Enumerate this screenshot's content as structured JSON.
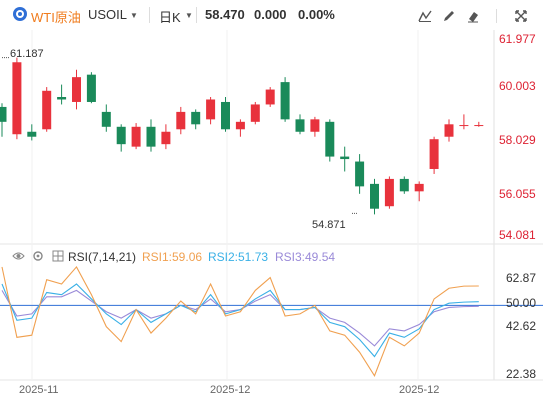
{
  "toolbar": {
    "symbol_name": "WTI原油",
    "symbol_code": "USOIL",
    "period": "日K",
    "last": "58.470",
    "change": "0.000",
    "change_pct": "0.00%",
    "icons": [
      "line-tool-icon",
      "pen-icon",
      "eraser-icon",
      "fullscreen-icon"
    ]
  },
  "price_axis": [
    "61.977",
    "60.003",
    "58.029",
    "56.055",
    "54.081"
  ],
  "annotations": {
    "high": "61.187",
    "low": "54.871"
  },
  "rsi": {
    "title": "RSI(7,14,21)",
    "rsi1": "RSI1:59.06",
    "rsi2": "RSI2:51.73",
    "rsi3": "RSI3:49.54",
    "axis": [
      "62.87",
      "50.00",
      "42.62",
      "22.38"
    ]
  },
  "dates": [
    "2025-11",
    "2025-12",
    "2025-12"
  ],
  "colors": {
    "up": "#e8323c",
    "down": "#1a8a5a",
    "rsi1": "#f0a050",
    "rsi2": "#3ab0e6",
    "rsi3": "#9a8ad8",
    "midline": "#2f6fd6"
  },
  "chart_data": {
    "type": "candlestick",
    "ylim": [
      54.081,
      61.977
    ],
    "candles": [
      {
        "o": 59.2,
        "h": 59.35,
        "l": 58.0,
        "c": 58.6
      },
      {
        "o": 58.1,
        "h": 61.187,
        "l": 57.9,
        "c": 61.0
      },
      {
        "o": 58.2,
        "h": 58.5,
        "l": 57.85,
        "c": 58.0
      },
      {
        "o": 58.3,
        "h": 60.0,
        "l": 58.2,
        "c": 59.85
      },
      {
        "o": 59.6,
        "h": 60.1,
        "l": 59.3,
        "c": 59.5
      },
      {
        "o": 59.4,
        "h": 60.7,
        "l": 59.1,
        "c": 60.4
      },
      {
        "o": 60.5,
        "h": 60.6,
        "l": 59.35,
        "c": 59.4
      },
      {
        "o": 59.0,
        "h": 59.3,
        "l": 58.2,
        "c": 58.4
      },
      {
        "o": 58.4,
        "h": 58.5,
        "l": 57.4,
        "c": 57.7
      },
      {
        "o": 57.6,
        "h": 58.55,
        "l": 57.5,
        "c": 58.4
      },
      {
        "o": 58.4,
        "h": 58.7,
        "l": 57.4,
        "c": 57.6
      },
      {
        "o": 57.7,
        "h": 58.5,
        "l": 57.5,
        "c": 58.2
      },
      {
        "o": 58.3,
        "h": 59.2,
        "l": 58.1,
        "c": 59.0
      },
      {
        "o": 59.0,
        "h": 59.1,
        "l": 58.3,
        "c": 58.5
      },
      {
        "o": 58.7,
        "h": 59.6,
        "l": 58.5,
        "c": 59.5
      },
      {
        "o": 59.4,
        "h": 59.6,
        "l": 58.2,
        "c": 58.3
      },
      {
        "o": 58.3,
        "h": 58.7,
        "l": 58.0,
        "c": 58.6
      },
      {
        "o": 58.6,
        "h": 59.4,
        "l": 58.5,
        "c": 59.3
      },
      {
        "o": 59.3,
        "h": 60.0,
        "l": 59.2,
        "c": 59.9
      },
      {
        "o": 60.2,
        "h": 60.4,
        "l": 58.6,
        "c": 58.7
      },
      {
        "o": 58.7,
        "h": 58.9,
        "l": 58.1,
        "c": 58.2
      },
      {
        "o": 58.2,
        "h": 58.8,
        "l": 58.0,
        "c": 58.7
      },
      {
        "o": 58.6,
        "h": 58.7,
        "l": 57.0,
        "c": 57.2
      },
      {
        "o": 57.2,
        "h": 57.6,
        "l": 56.6,
        "c": 57.1
      },
      {
        "o": 57.0,
        "h": 57.3,
        "l": 55.7,
        "c": 56.0
      },
      {
        "o": 56.1,
        "h": 56.3,
        "l": 54.871,
        "c": 55.1
      },
      {
        "o": 55.2,
        "h": 56.4,
        "l": 55.1,
        "c": 56.3
      },
      {
        "o": 56.3,
        "h": 56.4,
        "l": 55.7,
        "c": 55.8
      },
      {
        "o": 55.8,
        "h": 56.2,
        "l": 55.4,
        "c": 56.1
      },
      {
        "o": 56.7,
        "h": 58.0,
        "l": 56.5,
        "c": 57.9
      },
      {
        "o": 58.0,
        "h": 58.7,
        "l": 57.8,
        "c": 58.5
      },
      {
        "o": 58.47,
        "h": 58.9,
        "l": 58.3,
        "c": 58.47
      },
      {
        "o": 58.47,
        "h": 58.6,
        "l": 58.4,
        "c": 58.47
      }
    ],
    "rsi_ylim": [
      15,
      75
    ],
    "rsi1": [
      68,
      35,
      36,
      62,
      60,
      68,
      55,
      40,
      33,
      48,
      37,
      44,
      52,
      46,
      60,
      45,
      47,
      57,
      63,
      45,
      46,
      50,
      38,
      36,
      28,
      17,
      35,
      31,
      37,
      53,
      58,
      59,
      59.06
    ],
    "rsi2": [
      60,
      43,
      44,
      56,
      55,
      60,
      53,
      46,
      41,
      48,
      42,
      46,
      50,
      47,
      55,
      46,
      48,
      53,
      57,
      48,
      48,
      49,
      42,
      40,
      34,
      26,
      37,
      35,
      39,
      48,
      51,
      51.5,
      51.73
    ],
    "rsi3": [
      57,
      45,
      46,
      54,
      54,
      57,
      52,
      47,
      44,
      48,
      44,
      46,
      50,
      48,
      53,
      47,
      48,
      52,
      55,
      48,
      48,
      49,
      44,
      42,
      37,
      31,
      39,
      38,
      41,
      47,
      49,
      49.4,
      49.54
    ],
    "rsi_midline": 50
  }
}
